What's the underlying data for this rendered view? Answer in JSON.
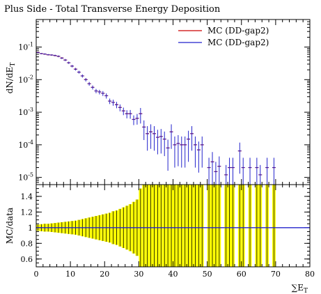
{
  "chart_data": [
    {
      "type": "scatter",
      "title": "Plus Side - Total Transverse Energy Deposition",
      "ylabel": "dN/dE_T",
      "ylabel_parts": {
        "main": "dN/dE",
        "sub": "T"
      },
      "yscale": "log",
      "ylim": [
        6e-06,
        0.7
      ],
      "xlim": [
        0,
        80
      ],
      "ytick_mantissa": "10",
      "yticks": [
        {
          "exp": "-5",
          "value": 1e-05
        },
        {
          "exp": "-4",
          "value": 0.0001
        },
        {
          "exp": "-3",
          "value": 0.001
        },
        {
          "exp": "-2",
          "value": 0.01
        },
        {
          "exp": "-1",
          "value": 0.1
        }
      ],
      "legend_position": "top-right",
      "series": [
        {
          "name": "MC (DD-gap2)",
          "color": "#cc0000",
          "x": [
            0.5,
            1.5,
            2.5,
            3.5,
            4.5,
            5.5,
            6.5,
            7.5,
            8.5,
            9.5,
            10.5,
            11.5,
            12.5,
            13.5,
            14.5,
            15.5,
            16.5,
            17.5,
            18.5,
            19.5,
            20.5,
            21.5,
            22.5,
            23.5,
            24.5,
            25.5,
            26.5,
            27.5,
            28.5,
            29.5,
            30.5,
            31.5,
            32.5,
            33.5,
            34.5,
            35.5,
            36.5,
            37.5,
            38.5,
            39.5,
            40.5,
            41.5,
            42.5,
            43.5,
            44.5,
            45.5,
            46.5,
            47.5,
            48.5,
            50.5,
            51.5,
            52.5,
            53.5,
            55.5,
            56.5,
            57.5,
            59.5,
            60.5,
            62.5,
            64.5,
            65.5,
            67.5,
            69.5
          ],
          "y": [
            0.068,
            0.063,
            0.061,
            0.058,
            0.057,
            0.055,
            0.052,
            0.046,
            0.04,
            0.033,
            0.026,
            0.021,
            0.017,
            0.013,
            0.01,
            0.0075,
            0.0058,
            0.0045,
            0.0042,
            0.0038,
            0.0032,
            0.0022,
            0.002,
            0.0017,
            0.0014,
            0.0011,
            0.0009,
            0.0009,
            0.0006,
            0.00065,
            0.0009,
            0.00035,
            0.00022,
            0.00025,
            0.00022,
            0.00017,
            0.00018,
            0.00015,
            8e-05,
            0.00025,
            0.0001,
            0.00011,
            0.0001,
            0.0001,
            0.00015,
            0.00022,
            0.0001,
            7e-05,
            0.0001,
            2e-05,
            3e-05,
            1.5e-05,
            2.2e-05,
            1.2e-05,
            2e-05,
            2e-05,
            6.5e-05,
            2e-05,
            2e-05,
            2e-05,
            1.2e-05,
            2e-05,
            2e-05
          ]
        },
        {
          "name": "MC (DD-gap2)",
          "color": "#2222cc",
          "x": [
            0.5,
            1.5,
            2.5,
            3.5,
            4.5,
            5.5,
            6.5,
            7.5,
            8.5,
            9.5,
            10.5,
            11.5,
            12.5,
            13.5,
            14.5,
            15.5,
            16.5,
            17.5,
            18.5,
            19.5,
            20.5,
            21.5,
            22.5,
            23.5,
            24.5,
            25.5,
            26.5,
            27.5,
            28.5,
            29.5,
            30.5,
            31.5,
            32.5,
            33.5,
            34.5,
            35.5,
            36.5,
            37.5,
            38.5,
            39.5,
            40.5,
            41.5,
            42.5,
            43.5,
            44.5,
            45.5,
            46.5,
            47.5,
            48.5,
            50.5,
            51.5,
            52.5,
            53.5,
            55.5,
            56.5,
            57.5,
            59.5,
            60.5,
            62.5,
            64.5,
            65.5,
            67.5,
            69.5
          ],
          "y": [
            0.068,
            0.063,
            0.061,
            0.058,
            0.057,
            0.055,
            0.052,
            0.046,
            0.04,
            0.033,
            0.026,
            0.021,
            0.017,
            0.013,
            0.01,
            0.0075,
            0.0058,
            0.0045,
            0.0042,
            0.0038,
            0.0032,
            0.0022,
            0.002,
            0.0017,
            0.0014,
            0.0011,
            0.0009,
            0.0009,
            0.0006,
            0.00065,
            0.0009,
            0.00035,
            0.00022,
            0.00025,
            0.00022,
            0.00017,
            0.00018,
            0.00015,
            8e-05,
            0.00025,
            0.0001,
            0.00011,
            0.0001,
            0.0001,
            0.00015,
            0.00022,
            0.0001,
            7e-05,
            0.0001,
            2e-05,
            3e-05,
            1.5e-05,
            2.2e-05,
            1.2e-05,
            2e-05,
            2e-05,
            6.5e-05,
            2e-05,
            2e-05,
            2e-05,
            1.2e-05,
            2e-05,
            2e-05
          ],
          "rel_err": [
            0.04,
            0.045,
            0.05,
            0.05,
            0.055,
            0.06,
            0.065,
            0.07,
            0.075,
            0.08,
            0.085,
            0.09,
            0.1,
            0.11,
            0.12,
            0.13,
            0.14,
            0.15,
            0.16,
            0.17,
            0.18,
            0.19,
            0.21,
            0.22,
            0.24,
            0.26,
            0.28,
            0.3,
            0.33,
            0.36,
            0.5,
            0.6,
            0.7,
            0.7,
            0.7,
            0.7,
            0.7,
            0.7,
            0.8,
            0.7,
            0.8,
            0.8,
            0.8,
            0.8,
            0.8,
            0.7,
            0.8,
            0.8,
            0.8,
            1.0,
            1.0,
            1.0,
            1.0,
            1.0,
            1.0,
            1.0,
            0.8,
            1.0,
            1.0,
            1.0,
            1.0,
            1.0,
            1.0
          ]
        }
      ]
    },
    {
      "type": "bar",
      "ylabel": "MC/data",
      "xlabel": "∑E_T",
      "xlabel_parts": {
        "main": "∑E",
        "sub": "T"
      },
      "xlim": [
        0,
        80
      ],
      "ylim": [
        0.5,
        1.55
      ],
      "xticks": [
        "0",
        "10",
        "20",
        "30",
        "40",
        "50",
        "60",
        "70",
        "80"
      ],
      "yticks": [
        "0.6",
        "0.8",
        "1",
        "1.2",
        "1.4"
      ],
      "band_color": "#ffff00",
      "ratio_line_value": 1,
      "ratio_line_color": "#2222cc",
      "band_x": [
        0.5,
        1.5,
        2.5,
        3.5,
        4.5,
        5.5,
        6.5,
        7.5,
        8.5,
        9.5,
        10.5,
        11.5,
        12.5,
        13.5,
        14.5,
        15.5,
        16.5,
        17.5,
        18.5,
        19.5,
        20.5,
        21.5,
        22.5,
        23.5,
        24.5,
        25.5,
        26.5,
        27.5,
        28.5,
        29.5,
        30.5,
        31.5,
        32.5,
        33.5,
        34.5,
        35.5,
        36.5,
        37.5,
        38.5,
        39.5,
        40.5,
        41.5,
        42.5,
        43.5,
        44.5,
        45.5,
        46.5,
        47.5,
        48.5,
        50.5,
        51.5,
        52.5,
        53.5,
        55.5,
        56.5,
        57.5,
        59.5,
        60.5,
        62.5,
        64.5,
        65.5,
        67.5,
        69.5
      ],
      "band_rel_err": [
        0.04,
        0.045,
        0.05,
        0.05,
        0.055,
        0.06,
        0.065,
        0.07,
        0.075,
        0.08,
        0.085,
        0.09,
        0.1,
        0.11,
        0.12,
        0.13,
        0.14,
        0.15,
        0.16,
        0.17,
        0.18,
        0.19,
        0.21,
        0.22,
        0.24,
        0.26,
        0.28,
        0.3,
        0.33,
        0.36,
        0.5,
        0.6,
        0.7,
        0.7,
        0.7,
        0.7,
        0.7,
        0.7,
        0.8,
        0.7,
        0.8,
        0.8,
        0.8,
        0.8,
        0.8,
        0.7,
        0.8,
        0.8,
        0.8,
        1.0,
        1.0,
        1.0,
        1.0,
        1.0,
        1.0,
        1.0,
        0.8,
        1.0,
        1.0,
        1.0,
        1.0,
        1.0,
        1.0
      ]
    }
  ]
}
